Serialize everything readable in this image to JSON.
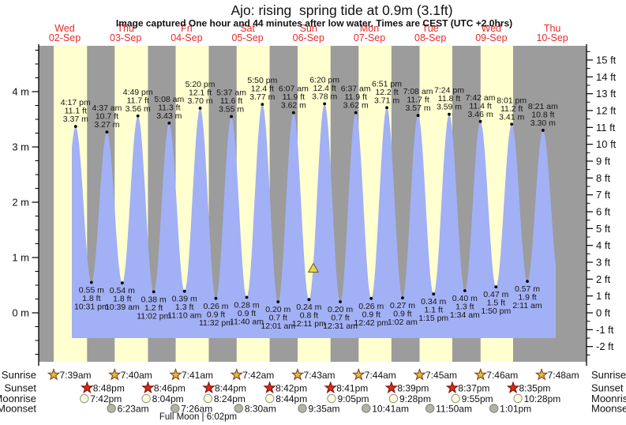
{
  "chart_data": {
    "type": "area",
    "title": "Ajo: rising  spring tide at 0.9m (3.1ft)",
    "subtitle": "Image captured One hour and 44 minutes after low water. Times are CEST (UTC +2.0hrs)",
    "full_moon_note": "Full Moon | 6:02pm",
    "colors": {
      "day_band": "#ffffd0",
      "night_band": "#9c9c9c",
      "tide_fill": "#a2b0f5",
      "date_label": "#e82c2c",
      "sunrise_star": "#d6c33c",
      "sunset_star": "#df2818",
      "moonrise_circle": "#fbfbd8",
      "moonset_circle": "#b3b3a3"
    },
    "y_axis_left": {
      "unit": "m",
      "values": [
        0,
        1,
        2,
        3,
        4
      ],
      "tick_labels": [
        "0 m",
        "1 m",
        "2 m",
        "3 m",
        "4 m"
      ]
    },
    "y_axis_right": {
      "unit": "ft",
      "min_ft": -2,
      "max_ft": 15,
      "tick_labels": [
        "-2 ft",
        "-1 ft",
        "0 ft",
        "1 ft",
        "2 ft",
        "3 ft",
        "4 ft",
        "5 ft",
        "6 ft",
        "7 ft",
        "8 ft",
        "9 ft",
        "10 ft",
        "11 ft",
        "12 ft",
        "13 ft",
        "14 ft",
        "15 ft"
      ]
    },
    "days": [
      {
        "name": "Wed",
        "date": "02-Sep"
      },
      {
        "name": "Thu",
        "date": "03-Sep"
      },
      {
        "name": "Fri",
        "date": "04-Sep"
      },
      {
        "name": "Sat",
        "date": "05-Sep"
      },
      {
        "name": "Sun",
        "date": "06-Sep"
      },
      {
        "name": "Mon",
        "date": "07-Sep"
      },
      {
        "name": "Tue",
        "date": "08-Sep"
      },
      {
        "name": "Wed",
        "date": "09-Sep"
      },
      {
        "name": "Thu",
        "date": "10-Sep"
      }
    ],
    "tide_events": [
      {
        "day": 0,
        "type": "high",
        "time": "4:17 pm",
        "ft": "11.1 ft",
        "m": "3.37 m",
        "value_m": 3.37
      },
      {
        "day": 0,
        "type": "low",
        "time": "10:31 pm",
        "ft": "1.8 ft",
        "m": "0.55 m",
        "value_m": 0.55
      },
      {
        "day": 1,
        "type": "high",
        "time": "4:37 am",
        "ft": "10.7 ft",
        "m": "3.27 m",
        "value_m": 3.27
      },
      {
        "day": 1,
        "type": "low",
        "time": "10:39 am",
        "ft": "1.8 ft",
        "m": "0.54 m",
        "value_m": 0.54
      },
      {
        "day": 1,
        "type": "high",
        "time": "4:49 pm",
        "ft": "11.7 ft",
        "m": "3.56 m",
        "value_m": 3.56
      },
      {
        "day": 1,
        "type": "low",
        "time": "11:02 pm",
        "ft": "1.2 ft",
        "m": "0.38 m",
        "value_m": 0.38
      },
      {
        "day": 2,
        "type": "high",
        "time": "5:08 am",
        "ft": "11.3 ft",
        "m": "3.43 m",
        "value_m": 3.43
      },
      {
        "day": 2,
        "type": "low",
        "time": "11:10 am",
        "ft": "1.3 ft",
        "m": "0.39 m",
        "value_m": 0.39
      },
      {
        "day": 2,
        "type": "high",
        "time": "5:20 pm",
        "ft": "12.1 ft",
        "m": "3.70 m",
        "value_m": 3.7
      },
      {
        "day": 2,
        "type": "low",
        "time": "11:32 pm",
        "ft": "0.9 ft",
        "m": "0.26 m",
        "value_m": 0.26
      },
      {
        "day": 3,
        "type": "high",
        "time": "5:37 am",
        "ft": "11.6 ft",
        "m": "3.55 m",
        "value_m": 3.55
      },
      {
        "day": 3,
        "type": "low",
        "time": "11:40 am",
        "ft": "0.9 ft",
        "m": "0.28 m",
        "value_m": 0.28
      },
      {
        "day": 3,
        "type": "high",
        "time": "5:50 pm",
        "ft": "12.4 ft",
        "m": "3.77 m",
        "value_m": 3.77
      },
      {
        "day": 4,
        "type": "low",
        "time": "12:01 am",
        "ft": "0.7 ft",
        "m": "0.20 m",
        "value_m": 0.2
      },
      {
        "day": 4,
        "type": "high",
        "time": "6:07 am",
        "ft": "11.9 ft",
        "m": "3.62 m",
        "value_m": 3.62
      },
      {
        "day": 4,
        "type": "low",
        "time": "12:11 pm",
        "ft": "0.8 ft",
        "m": "0.24 m",
        "value_m": 0.24
      },
      {
        "day": 4,
        "type": "high",
        "time": "6:20 pm",
        "ft": "12.4 ft",
        "m": "3.78 m",
        "value_m": 3.78
      },
      {
        "day": 5,
        "type": "low",
        "time": "12:31 am",
        "ft": "0.7 ft",
        "m": "0.20 m",
        "value_m": 0.2
      },
      {
        "day": 5,
        "type": "high",
        "time": "6:37 am",
        "ft": "11.9 ft",
        "m": "3.62 m",
        "value_m": 3.62
      },
      {
        "day": 5,
        "type": "low",
        "time": "12:42 pm",
        "ft": "0.9 ft",
        "m": "0.26 m",
        "value_m": 0.26
      },
      {
        "day": 5,
        "type": "high",
        "time": "6:51 pm",
        "ft": "12.2 ft",
        "m": "3.71 m",
        "value_m": 3.71
      },
      {
        "day": 6,
        "type": "low",
        "time": "1:02 am",
        "ft": "0.9 ft",
        "m": "0.27 m",
        "value_m": 0.27
      },
      {
        "day": 6,
        "type": "high",
        "time": "7:08 am",
        "ft": "11.7 ft",
        "m": "3.57 m",
        "value_m": 3.57
      },
      {
        "day": 6,
        "type": "low",
        "time": "1:15 pm",
        "ft": "1.1 ft",
        "m": "0.34 m",
        "value_m": 0.34
      },
      {
        "day": 6,
        "type": "high",
        "time": "7:24 pm",
        "ft": "11.8 ft",
        "m": "3.59 m",
        "value_m": 3.59
      },
      {
        "day": 7,
        "type": "low",
        "time": "1:34 am",
        "ft": "1.3 ft",
        "m": "0.40 m",
        "value_m": 0.4
      },
      {
        "day": 7,
        "type": "high",
        "time": "7:42 am",
        "ft": "11.4 ft",
        "m": "3.46 m",
        "value_m": 3.46
      },
      {
        "day": 7,
        "type": "low",
        "time": "1:50 pm",
        "ft": "1.5 ft",
        "m": "0.47 m",
        "value_m": 0.47
      },
      {
        "day": 7,
        "type": "high",
        "time": "8:01 pm",
        "ft": "11.2 ft",
        "m": "3.41 m",
        "value_m": 3.41
      },
      {
        "day": 8,
        "type": "low",
        "time": "2:11 am",
        "ft": "1.9 ft",
        "m": "0.57 m",
        "value_m": 0.57
      },
      {
        "day": 8,
        "type": "high",
        "time": "8:21 am",
        "ft": "10.8 ft",
        "m": "3.30 m",
        "value_m": 3.3
      }
    ],
    "current_marker": {
      "day": 4,
      "time": "1:55 pm",
      "level_m": 0.9
    },
    "astro": {
      "rows": [
        {
          "id": "sunrise",
          "label": "Sunrise",
          "icon": "sunrise-star-icon",
          "entries": [
            {
              "day": 0,
              "time": "7:39am"
            },
            {
              "day": 1,
              "time": "7:40am"
            },
            {
              "day": 2,
              "time": "7:41am"
            },
            {
              "day": 3,
              "time": "7:42am"
            },
            {
              "day": 4,
              "time": "7:43am"
            },
            {
              "day": 5,
              "time": "7:44am"
            },
            {
              "day": 6,
              "time": "7:45am"
            },
            {
              "day": 7,
              "time": "7:46am"
            },
            {
              "day": 8,
              "time": "7:48am"
            }
          ]
        },
        {
          "id": "sunset",
          "label": "Sunset",
          "icon": "sunset-star-icon",
          "entries": [
            {
              "day": 0,
              "time": "8:48pm"
            },
            {
              "day": 1,
              "time": "8:46pm"
            },
            {
              "day": 2,
              "time": "8:44pm"
            },
            {
              "day": 3,
              "time": "8:42pm"
            },
            {
              "day": 4,
              "time": "8:41pm"
            },
            {
              "day": 5,
              "time": "8:39pm"
            },
            {
              "day": 6,
              "time": "8:37pm"
            },
            {
              "day": 7,
              "time": "8:35pm"
            }
          ]
        },
        {
          "id": "moonrise",
          "label": "Moonrise",
          "icon": "moonrise-circle-icon",
          "entries": [
            {
              "day": 0,
              "time": "7:42pm"
            },
            {
              "day": 1,
              "time": "8:04pm"
            },
            {
              "day": 2,
              "time": "8:24pm"
            },
            {
              "day": 3,
              "time": "8:44pm"
            },
            {
              "day": 4,
              "time": "9:05pm"
            },
            {
              "day": 5,
              "time": "9:28pm"
            },
            {
              "day": 6,
              "time": "9:55pm"
            },
            {
              "day": 7,
              "time": "10:28pm"
            }
          ]
        },
        {
          "id": "moonset",
          "label": "Moonset",
          "icon": "moonset-circle-icon",
          "entries": [
            {
              "day": 1,
              "time": "6:23am"
            },
            {
              "day": 2,
              "time": "7:26am"
            },
            {
              "day": 3,
              "time": "8:30am"
            },
            {
              "day": 4,
              "time": "9:35am"
            },
            {
              "day": 5,
              "time": "10:41am"
            },
            {
              "day": 6,
              "time": "11:50am"
            },
            {
              "day": 7,
              "time": "1:01pm"
            }
          ]
        }
      ]
    }
  }
}
